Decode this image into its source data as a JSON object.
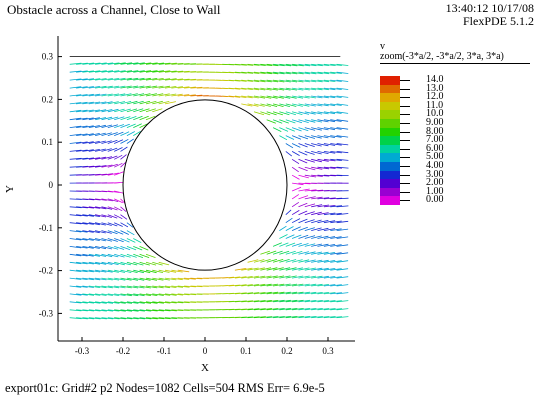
{
  "title": "Obstacle across a Channel, Close to Wall",
  "timestamp": "13:40:12 10/17/08",
  "software": "FlexPDE 5.1.2",
  "legend": {
    "variable": "v",
    "zoom": "zoom(-3*a/2, -3*a/2, 3*a, 3*a)",
    "levels": [
      "14.0",
      "13.0",
      "12.0",
      "11.0",
      "10.0",
      "9.00",
      "8.00",
      "7.00",
      "6.00",
      "5.00",
      "4.00",
      "3.00",
      "2.00",
      "1.00",
      "0.00"
    ],
    "colors": [
      "#e02000",
      "#e06a00",
      "#e0a800",
      "#c8c800",
      "#9ad200",
      "#5fd200",
      "#22d200",
      "#00d24a",
      "#00d2a0",
      "#00aad2",
      "#0068d2",
      "#1428d2",
      "#5200d2",
      "#9a00d2",
      "#e000e0"
    ]
  },
  "footer": "export01c:  Grid#2  p2  Nodes=1082 Cells=504 RMS Err= 6.9e-5",
  "chart_data": {
    "type": "vector_field",
    "xlabel": "X",
    "ylabel": "Y",
    "xlim": [
      -0.35,
      0.35
    ],
    "ylim": [
      -0.35,
      0.35
    ],
    "xticks": [
      -0.3,
      -0.2,
      -0.1,
      0,
      0.1,
      0.2,
      0.3
    ],
    "xtick_labels": [
      "-0.3",
      "-0.2",
      "-0.1",
      "0",
      "0.1",
      "0.2",
      "0.3"
    ],
    "yticks": [
      0.3,
      0.2,
      0.1,
      0,
      -0.1,
      -0.2,
      -0.3
    ],
    "ytick_labels": [
      "0.3",
      "0.2",
      "0.1",
      "0",
      "-0.1",
      "-0.2",
      "-0.3"
    ],
    "wall_y": 0.3,
    "obstacle": {
      "shape": "ellipse",
      "center": [
        0,
        0
      ],
      "rx": 0.2,
      "ry": 0.2
    },
    "grid": false
  }
}
